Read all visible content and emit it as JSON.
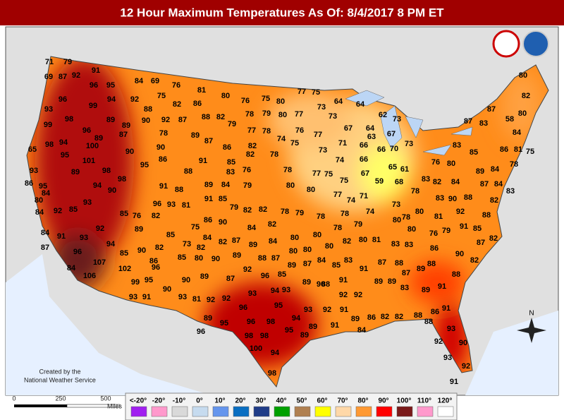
{
  "title": "12 Hour Maximum Temperatures As Of:  8/4/2017 8 PM ET",
  "credit": [
    "Created by the",
    "National Weather Service"
  ],
  "scale": {
    "labels": [
      "0",
      "250",
      "500"
    ],
    "unit": "Miles"
  },
  "compass": "N",
  "legend": [
    {
      "label": "<-20°",
      "color": "#a020f0"
    },
    {
      "label": "-20°",
      "color": "#ff99cc"
    },
    {
      "label": "-10°",
      "color": "#d9d9d9"
    },
    {
      "label": "0°",
      "color": "#c6dbef"
    },
    {
      "label": "10°",
      "color": "#6495ed"
    },
    {
      "label": "20°",
      "color": "#0a6fc2"
    },
    {
      "label": "30°",
      "color": "#1f3c88"
    },
    {
      "label": "40°",
      "color": "#00a000"
    },
    {
      "label": "50°",
      "color": "#b08050"
    },
    {
      "label": "60°",
      "color": "#ffff00"
    },
    {
      "label": "70°",
      "color": "#ffd8a8"
    },
    {
      "label": "80°",
      "color": "#ff9933"
    },
    {
      "label": "90°",
      "color": "#ff0000"
    },
    {
      "label": "100°",
      "color": "#7a1a1a"
    },
    {
      "label": "110°",
      "color": "#ff99cc"
    },
    {
      "label": "120°",
      "color": "#ffffff"
    }
  ],
  "readings": [
    71,
    79,
    91,
    69,
    87,
    92,
    84,
    69,
    76,
    80,
    96,
    95,
    81,
    77,
    75,
    82,
    96,
    94,
    92,
    75,
    82,
    86,
    80,
    76,
    75,
    80,
    64,
    64,
    73,
    99,
    88,
    93,
    87,
    62,
    73,
    98,
    89,
    90,
    92,
    87,
    88,
    82,
    79,
    78,
    79,
    80,
    77,
    73,
    87,
    83,
    58,
    80,
    99,
    77,
    78,
    76,
    67,
    64,
    67,
    96,
    89,
    87,
    78,
    89,
    87,
    74,
    77,
    84,
    98,
    94,
    100,
    90,
    90,
    86,
    82,
    75,
    73,
    71,
    66,
    63,
    66,
    70,
    73,
    83,
    85,
    86,
    81,
    75,
    65,
    95,
    89,
    101,
    95,
    86,
    91,
    85,
    82,
    78,
    74,
    66,
    76,
    80,
    78,
    93,
    98,
    88,
    83,
    76,
    78,
    77,
    75,
    75,
    67,
    65,
    61,
    83,
    82,
    84,
    89,
    84,
    86,
    95,
    89,
    94,
    90,
    98,
    91,
    88,
    89,
    84,
    79,
    80,
    80,
    59,
    68,
    78,
    87,
    84,
    84,
    83,
    80,
    93,
    96,
    93,
    81,
    91,
    85,
    79,
    82,
    82,
    78,
    79,
    77,
    74,
    71,
    73,
    78,
    80,
    83,
    90,
    88,
    82,
    88,
    84,
    92,
    85,
    85,
    76,
    82,
    75,
    86,
    90,
    84,
    82,
    78,
    78,
    74,
    80,
    81,
    92,
    91,
    85,
    92,
    89,
    85,
    73,
    84,
    82,
    87,
    80,
    80,
    78,
    79,
    82,
    80,
    81,
    80,
    76,
    79,
    84,
    91,
    93,
    87,
    96,
    94,
    89,
    82,
    89,
    84,
    80,
    80,
    80,
    83,
    83,
    86,
    90,
    87,
    82,
    85,
    90,
    82,
    85,
    80,
    90,
    107,
    86,
    92,
    88,
    87,
    89,
    87,
    84,
    85,
    83,
    91,
    87,
    88,
    89,
    82,
    88,
    84,
    102,
    96,
    90,
    87,
    96,
    85,
    89,
    90,
    106,
    99,
    95,
    90,
    89,
    93,
    91,
    93,
    81,
    92,
    92,
    93,
    94,
    93,
    88,
    91,
    92,
    92,
    89,
    89,
    87,
    83,
    89,
    91,
    88,
    96,
    95,
    93,
    92,
    91,
    86,
    88,
    91,
    89,
    94,
    89,
    89,
    86,
    82,
    82,
    88,
    95,
    96,
    98,
    91,
    84,
    96,
    98,
    98,
    95,
    89,
    93,
    100,
    94,
    92,
    90,
    93,
    92,
    98,
    91
  ]
}
